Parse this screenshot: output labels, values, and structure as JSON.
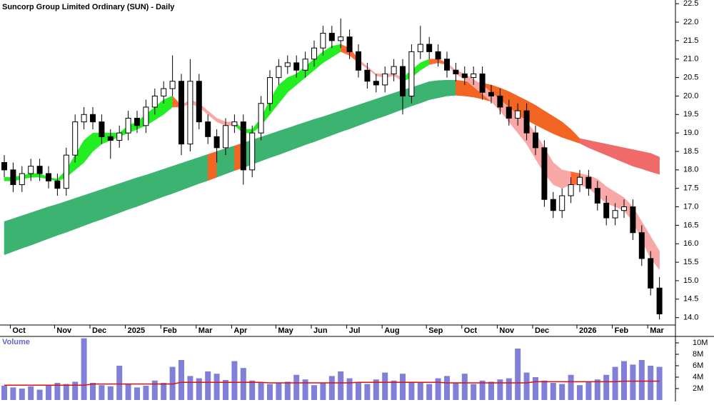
{
  "chart_data": {
    "type": "candlestick",
    "title": "Suncorp Group Limited Ordinary (SUN) - Daily",
    "categories": [
      null,
      "Oct",
      null,
      null,
      null,
      null,
      "Nov",
      null,
      null,
      null,
      "Dec",
      null,
      null,
      null,
      "2025",
      null,
      null,
      null,
      "Feb",
      null,
      null,
      null,
      "Mar",
      null,
      null,
      null,
      "Apr",
      null,
      null,
      null,
      null,
      "May",
      null,
      null,
      null,
      "Jun",
      null,
      null,
      null,
      "Jul",
      null,
      null,
      null,
      "Aug",
      null,
      null,
      null,
      null,
      "Sep",
      null,
      null,
      null,
      "Oct",
      null,
      null,
      null,
      "Nov",
      null,
      null,
      null,
      "Dec",
      null,
      null,
      null,
      null,
      "2026",
      null,
      null,
      null,
      "Feb",
      null,
      null,
      null,
      "Mar",
      null
    ],
    "open": [
      18.2,
      18.0,
      17.6,
      17.9,
      18.1,
      17.9,
      17.7,
      17.5,
      18.4,
      19.3,
      19.5,
      19.3,
      18.9,
      18.8,
      19.0,
      19.4,
      19.2,
      19.7,
      20.0,
      20.2,
      20.4,
      18.7,
      20.4,
      19.3,
      18.9,
      18.6,
      19.2,
      19.3,
      18.0,
      19.0,
      19.8,
      20.5,
      20.8,
      20.9,
      20.7,
      21.0,
      21.3,
      21.7,
      21.5,
      21.6,
      21.2,
      20.7,
      20.4,
      20.3,
      20.6,
      20.8,
      20.0,
      21.2,
      21.4,
      21.2,
      21.0,
      20.7,
      20.6,
      20.5,
      20.6,
      20.1,
      20.0,
      19.7,
      19.4,
      19.6,
      19.0,
      18.6,
      17.2,
      16.9,
      17.3,
      17.6,
      17.8,
      17.5,
      17.1,
      16.7,
      16.9,
      17.0,
      16.3,
      15.6,
      14.8
    ],
    "high": [
      18.4,
      18.2,
      18.1,
      18.3,
      18.3,
      18.1,
      17.9,
      18.6,
      19.5,
      19.7,
      19.7,
      19.5,
      19.1,
      19.2,
      19.6,
      19.6,
      19.9,
      20.2,
      20.4,
      21.1,
      20.6,
      21.0,
      20.6,
      19.5,
      19.1,
      19.4,
      19.5,
      19.5,
      19.2,
      20.0,
      20.7,
      21.0,
      21.1,
      21.1,
      21.2,
      21.5,
      21.9,
      21.9,
      22.1,
      21.8,
      21.4,
      20.9,
      20.6,
      20.8,
      21.0,
      21.0,
      21.4,
      21.9,
      21.6,
      21.4,
      21.2,
      20.9,
      20.8,
      20.8,
      20.8,
      20.3,
      20.2,
      19.9,
      19.8,
      19.8,
      19.2,
      18.8,
      17.4,
      17.5,
      17.8,
      18.0,
      18.0,
      17.7,
      17.3,
      17.1,
      17.2,
      17.2,
      16.5,
      15.8,
      15.1
    ],
    "low": [
      17.8,
      17.4,
      17.4,
      17.7,
      17.7,
      17.5,
      17.3,
      17.3,
      18.2,
      19.1,
      19.1,
      18.7,
      18.3,
      18.6,
      18.8,
      19.0,
      19.0,
      19.5,
      19.8,
      20.0,
      18.4,
      18.5,
      19.1,
      18.7,
      18.2,
      18.4,
      19.0,
      17.6,
      17.8,
      18.8,
      19.6,
      20.3,
      20.6,
      20.5,
      20.5,
      20.8,
      21.1,
      21.3,
      21.3,
      21.0,
      20.5,
      20.2,
      20.1,
      20.1,
      20.4,
      19.5,
      19.8,
      21.0,
      21.0,
      20.8,
      20.5,
      20.4,
      20.3,
      20.3,
      19.9,
      19.8,
      19.5,
      19.2,
      19.2,
      18.8,
      18.4,
      17.0,
      16.7,
      16.7,
      17.1,
      17.4,
      17.3,
      16.9,
      16.5,
      16.5,
      16.7,
      16.1,
      15.4,
      14.6,
      13.95
    ],
    "close": [
      18.0,
      17.6,
      17.9,
      18.1,
      17.9,
      17.7,
      17.5,
      18.4,
      19.3,
      19.5,
      19.3,
      18.9,
      18.8,
      19.0,
      19.4,
      19.2,
      19.7,
      20.0,
      20.2,
      20.4,
      18.7,
      20.4,
      19.3,
      18.9,
      18.6,
      19.2,
      19.3,
      18.0,
      19.0,
      19.8,
      20.5,
      20.8,
      20.9,
      20.7,
      21.0,
      21.3,
      21.7,
      21.5,
      21.6,
      21.2,
      20.7,
      20.4,
      20.3,
      20.6,
      20.8,
      20.0,
      21.2,
      21.4,
      21.2,
      21.0,
      20.7,
      20.6,
      20.5,
      20.6,
      20.1,
      20.0,
      19.7,
      19.4,
      19.6,
      19.0,
      18.6,
      17.2,
      16.9,
      17.3,
      17.6,
      17.8,
      17.5,
      17.1,
      16.7,
      16.9,
      17.0,
      16.3,
      15.6,
      14.8,
      14.1
    ],
    "up_color": "#ffffff",
    "down_color": "#000000",
    "ribbons": [
      {
        "upper": [
          16.6,
          16.68,
          16.76,
          16.84,
          16.92,
          17.0,
          17.07,
          17.15,
          17.23,
          17.31,
          17.39,
          17.47,
          17.55,
          17.63,
          17.71,
          17.79,
          17.86,
          17.94,
          18.02,
          18.1,
          18.18,
          18.26,
          18.34,
          18.42,
          18.5,
          18.58,
          18.65,
          18.73,
          18.81,
          18.89,
          18.97,
          19.05,
          19.13,
          19.21,
          19.29,
          19.37,
          19.44,
          19.52,
          19.6,
          19.68,
          19.76,
          19.84,
          19.92,
          20.0,
          20.08,
          20.16,
          20.23,
          20.31,
          20.39,
          20.42,
          20.43,
          20.43,
          20.4,
          20.38,
          20.35,
          20.3,
          20.22,
          20.12,
          20.0,
          19.88,
          19.75,
          19.6,
          19.45,
          19.3,
          19.1,
          18.85,
          18.8,
          18.75,
          18.7,
          18.65,
          18.6,
          18.55,
          18.5,
          18.45,
          18.35
        ],
        "lower": [
          15.7,
          15.79,
          15.88,
          15.96,
          16.05,
          16.14,
          16.23,
          16.31,
          16.4,
          16.49,
          16.58,
          16.66,
          16.75,
          16.84,
          16.93,
          17.01,
          17.1,
          17.19,
          17.28,
          17.36,
          17.45,
          17.54,
          17.63,
          17.71,
          17.8,
          17.89,
          17.98,
          18.06,
          18.15,
          18.24,
          18.33,
          18.41,
          18.5,
          18.59,
          18.68,
          18.76,
          18.85,
          18.94,
          19.03,
          19.11,
          19.2,
          19.29,
          19.38,
          19.46,
          19.55,
          19.64,
          19.73,
          19.81,
          19.9,
          19.95,
          20.0,
          20.02,
          20.0,
          19.97,
          19.92,
          19.85,
          19.75,
          19.62,
          19.48,
          19.35,
          19.22,
          19.1,
          18.98,
          18.88,
          18.8,
          18.72,
          18.6,
          18.5,
          18.4,
          18.3,
          18.2,
          18.1,
          18.03,
          17.95,
          17.88
        ],
        "colors": [
          "#3cb371",
          "#3cb371",
          "#3cb371",
          "#3cb371",
          "#3cb371",
          "#3cb371",
          "#3cb371",
          "#3cb371",
          "#3cb371",
          "#3cb371",
          "#3cb371",
          "#3cb371",
          "#3cb371",
          "#3cb371",
          "#3cb371",
          "#3cb371",
          "#3cb371",
          "#3cb371",
          "#3cb371",
          "#3cb371",
          "#3cb371",
          "#3cb371",
          "#3cb371",
          "#f26522",
          "#3cb371",
          "#3cb371",
          "#f26522",
          "#3cb371",
          "#3cb371",
          "#3cb371",
          "#3cb371",
          "#3cb371",
          "#3cb371",
          "#3cb371",
          "#3cb371",
          "#3cb371",
          "#3cb371",
          "#3cb371",
          "#3cb371",
          "#3cb371",
          "#3cb371",
          "#3cb371",
          "#3cb371",
          "#3cb371",
          "#3cb371",
          "#3cb371",
          "#3cb371",
          "#3cb371",
          "#3cb371",
          "#3cb371",
          "#3cb371",
          "#f26522",
          "#f26522",
          "#f26522",
          "#f26522",
          "#f26522",
          "#f26522",
          "#f26522",
          "#f26522",
          "#f26522",
          "#f26522",
          "#f26522",
          "#f26522",
          "#f26522",
          "#f26522",
          "#f06a6a",
          "#f06a6a",
          "#f06a6a",
          "#f06a6a",
          "#f06a6a",
          "#f06a6a",
          "#f06a6a",
          "#f06a6a",
          "#f06a6a",
          "#f06a6a"
        ]
      },
      {
        "upper": [
          17.8,
          17.8,
          17.85,
          17.9,
          17.9,
          17.8,
          17.75,
          18.0,
          18.4,
          18.8,
          19.0,
          19.0,
          19.0,
          19.0,
          19.2,
          19.3,
          19.5,
          19.7,
          19.9,
          20.0,
          19.75,
          19.9,
          19.8,
          19.6,
          19.4,
          19.3,
          19.3,
          19.1,
          19.1,
          19.4,
          19.9,
          20.3,
          20.5,
          20.6,
          20.8,
          21.0,
          21.2,
          21.35,
          21.4,
          21.3,
          21.0,
          20.8,
          20.6,
          20.6,
          20.6,
          20.5,
          20.7,
          20.9,
          21.0,
          21.0,
          20.9,
          20.7,
          20.6,
          20.45,
          20.3,
          20.1,
          19.9,
          19.7,
          19.5,
          19.3,
          19.0,
          18.6,
          18.2,
          18.0,
          17.95,
          17.9,
          17.85,
          17.75,
          17.55,
          17.4,
          17.25,
          17.0,
          16.6,
          16.2,
          15.8
        ],
        "lower": [
          17.7,
          17.7,
          17.75,
          17.8,
          17.8,
          17.75,
          17.7,
          17.8,
          18.0,
          18.2,
          18.5,
          18.7,
          18.8,
          18.9,
          19.0,
          19.1,
          19.2,
          19.35,
          19.5,
          19.7,
          19.7,
          19.8,
          19.7,
          19.5,
          19.3,
          19.2,
          19.2,
          19.0,
          19.0,
          19.2,
          19.5,
          19.8,
          20.1,
          20.3,
          20.5,
          20.7,
          20.9,
          21.05,
          21.2,
          21.1,
          20.9,
          20.75,
          20.55,
          20.5,
          20.55,
          20.4,
          20.5,
          20.7,
          20.85,
          20.9,
          20.85,
          20.6,
          20.45,
          20.25,
          20.05,
          19.85,
          19.6,
          19.3,
          19.0,
          18.7,
          18.3,
          17.9,
          17.6,
          17.5,
          17.6,
          17.6,
          17.5,
          17.3,
          17.1,
          17.0,
          16.9,
          16.6,
          16.1,
          15.6,
          15.3
        ],
        "colors": [
          "#22ee22",
          "#22ee22",
          "#22ee22",
          "#22ee22",
          "#22ee22",
          "#22ee22",
          "#22ee22",
          "#22ee22",
          "#22ee22",
          "#22ee22",
          "#22ee22",
          "#22ee22",
          "#22ee22",
          "#22ee22",
          "#22ee22",
          "#22ee22",
          "#22ee22",
          "#22ee22",
          "#22ee22",
          "#ff6a33",
          "#f9a8a8",
          "#f9a8a8",
          "#f9a8a8",
          "#f9a8a8",
          "#f9a8a8",
          "#f9a8a8",
          "#22ee22",
          "#22ee22",
          "#22ee22",
          "#22ee22",
          "#22ee22",
          "#22ee22",
          "#22ee22",
          "#22ee22",
          "#22ee22",
          "#22ee22",
          "#22ee22",
          "#22ee22",
          "#ff6a33",
          "#ff6a33",
          "#f9a8a8",
          "#f9a8a8",
          "#f9a8a8",
          "#f9a8a8",
          "#f9a8a8",
          "#22ee22",
          "#22ee22",
          "#22ee22",
          "#ff6a33",
          "#ff6a33",
          "#f9a8a8",
          "#f9a8a8",
          "#f9a8a8",
          "#f9a8a8",
          "#f9a8a8",
          "#f9a8a8",
          "#f9a8a8",
          "#f9a8a8",
          "#f9a8a8",
          "#f9a8a8",
          "#f9a8a8",
          "#f9a8a8",
          "#f9a8a8",
          "#f9a8a8",
          "#ff6a33",
          "#f9a8a8",
          "#f9a8a8",
          "#f9a8a8",
          "#f9a8a8",
          "#f9a8a8",
          "#f9a8a8",
          "#f9a8a8",
          "#f9a8a8",
          "#f9a8a8",
          "#f9a8a8"
        ]
      }
    ],
    "ylim": [
      13.8,
      22.6
    ],
    "yticks": [
      {
        "value": 14,
        "label": "14.0"
      },
      14.5,
      {
        "value": 15,
        "label": "15.0"
      },
      15.5,
      {
        "value": 16,
        "label": "16.0"
      },
      16.5,
      {
        "value": 17,
        "label": "17.0"
      },
      17.5,
      {
        "value": 18,
        "label": "18.0"
      },
      18.5,
      {
        "value": 19,
        "label": "19.0"
      },
      19.5,
      {
        "value": 20,
        "label": "20.0"
      },
      20.5,
      {
        "value": 21,
        "label": "21.0"
      },
      21.5,
      {
        "value": 22,
        "label": "22.0"
      },
      22.5
    ],
    "volume": {
      "label": "Volume",
      "color": "#8080d8",
      "values": [
        2.5,
        2.2,
        2.0,
        2.4,
        1.8,
        2.6,
        3.0,
        2.8,
        3.2,
        10.8,
        3.0,
        2.6,
        2.4,
        6.0,
        2.8,
        2.2,
        2.5,
        3.4,
        3.0,
        5.8,
        7.0,
        4.2,
        3.8,
        5.0,
        4.6,
        3.5,
        6.8,
        5.6,
        3.4,
        3.0,
        2.8,
        3.0,
        3.2,
        4.4,
        3.6,
        2.6,
        3.0,
        4.2,
        5.0,
        3.8,
        3.0,
        2.8,
        3.6,
        4.8,
        3.4,
        4.6,
        3.2,
        3.0,
        2.8,
        3.8,
        4.2,
        3.0,
        4.6,
        2.8,
        3.4,
        3.2,
        3.6,
        3.8,
        9.0,
        4.8,
        4.0,
        3.4,
        3.0,
        2.8,
        4.4,
        2.6,
        3.2,
        3.6,
        4.4,
        5.8,
        6.8,
        6.2,
        7.0,
        6.0,
        5.8
      ],
      "average": {
        "color": "#dd1111",
        "values": [
          2.6,
          2.6,
          2.6,
          2.6,
          2.6,
          2.6,
          2.6,
          2.6,
          2.6,
          2.6,
          2.8,
          2.8,
          2.8,
          2.8,
          2.8,
          2.8,
          2.8,
          2.8,
          2.8,
          2.8,
          3.1,
          3.1,
          3.1,
          3.1,
          3.1,
          3.1,
          3.1,
          3.1,
          3.1,
          3.1,
          3.0,
          3.0,
          3.0,
          3.0,
          3.0,
          3.0,
          3.0,
          3.0,
          3.0,
          3.0,
          3.1,
          3.1,
          3.1,
          3.1,
          3.1,
          3.1,
          3.1,
          3.1,
          3.1,
          3.1,
          3.0,
          3.0,
          3.0,
          3.0,
          3.0,
          3.0,
          3.0,
          3.0,
          3.0,
          3.0,
          3.2,
          3.2,
          3.2,
          3.2,
          3.2,
          3.2,
          3.2,
          3.2,
          3.2,
          3.2,
          3.3,
          3.3,
          3.3,
          3.3,
          3.3
        ]
      },
      "ylim": [
        0,
        11
      ],
      "yticks": [
        {
          "value": 2,
          "label": "2M"
        },
        {
          "value": 4,
          "label": "4M"
        },
        {
          "value": 6,
          "label": "6M"
        },
        {
          "value": 8,
          "label": "8M"
        },
        {
          "value": 10,
          "label": "10M"
        }
      ]
    }
  }
}
